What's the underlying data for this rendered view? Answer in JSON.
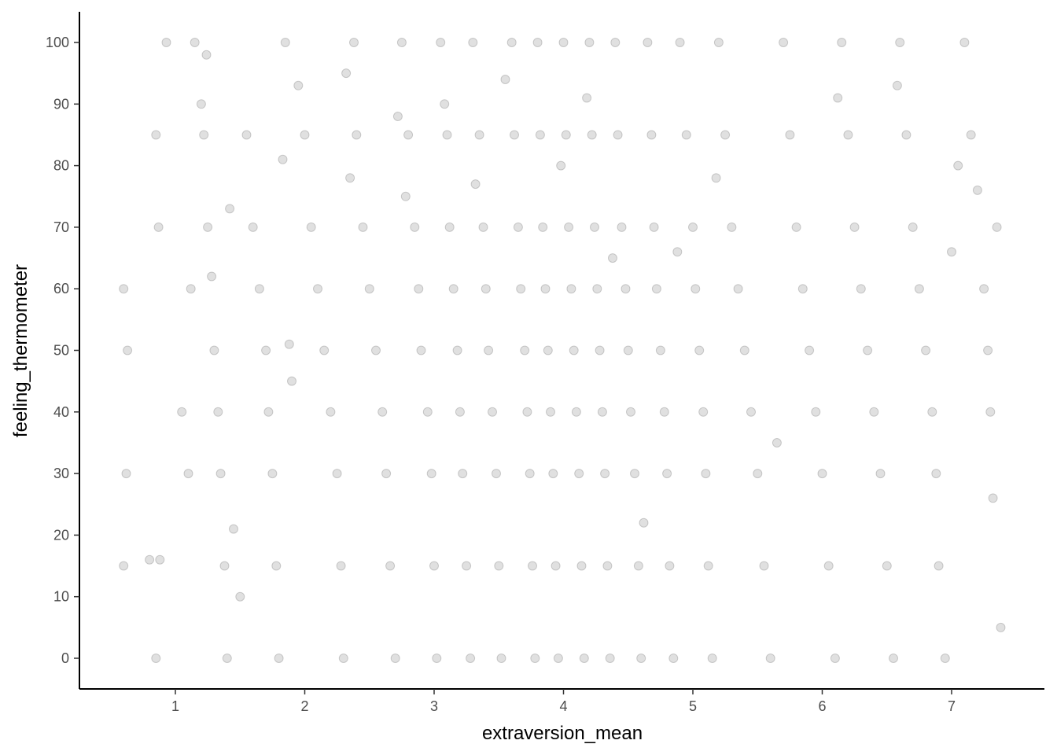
{
  "chart_data": {
    "type": "scatter",
    "title": "",
    "xlabel": "extraversion_mean",
    "ylabel": "feeling_thermometer",
    "xlim": [
      0.5,
      7.5
    ],
    "ylim": [
      -5,
      105
    ],
    "x_ticks": [
      1,
      2,
      3,
      4,
      5,
      6,
      7
    ],
    "y_ticks": [
      0,
      10,
      20,
      30,
      40,
      50,
      60,
      70,
      80,
      90,
      100
    ],
    "x_tick_labels": [
      "1",
      "2",
      "3",
      "4",
      "5",
      "6",
      "7"
    ],
    "y_tick_labels": [
      "0",
      "10",
      "20",
      "30",
      "40",
      "50",
      "60",
      "70",
      "80",
      "90",
      "100"
    ],
    "grid": false,
    "legend": "none",
    "point_color": "#000000",
    "point_alpha": 0.12,
    "series": [
      {
        "points": [
          [
            0.93,
            100
          ],
          [
            0.85,
            85
          ],
          [
            0.87,
            70
          ],
          [
            0.6,
            60
          ],
          [
            0.63,
            50
          ],
          [
            0.62,
            30
          ],
          [
            0.6,
            15
          ],
          [
            0.85,
            0
          ],
          [
            0.8,
            16
          ],
          [
            0.88,
            16
          ],
          [
            1.05,
            40
          ],
          [
            1.1,
            30
          ],
          [
            1.12,
            60
          ],
          [
            1.15,
            100
          ],
          [
            1.2,
            90
          ],
          [
            1.22,
            85
          ],
          [
            1.24,
            98
          ],
          [
            1.25,
            70
          ],
          [
            1.28,
            62
          ],
          [
            1.3,
            50
          ],
          [
            1.33,
            40
          ],
          [
            1.35,
            30
          ],
          [
            1.38,
            15
          ],
          [
            1.4,
            0
          ],
          [
            1.42,
            73
          ],
          [
            1.45,
            21
          ],
          [
            1.5,
            10
          ],
          [
            1.55,
            85
          ],
          [
            1.6,
            70
          ],
          [
            1.65,
            60
          ],
          [
            1.7,
            50
          ],
          [
            1.72,
            40
          ],
          [
            1.75,
            30
          ],
          [
            1.78,
            15
          ],
          [
            1.8,
            0
          ],
          [
            1.83,
            81
          ],
          [
            1.85,
            100
          ],
          [
            1.88,
            51
          ],
          [
            1.9,
            45
          ],
          [
            1.95,
            93
          ],
          [
            2.0,
            85
          ],
          [
            2.05,
            70
          ],
          [
            2.1,
            60
          ],
          [
            2.15,
            50
          ],
          [
            2.2,
            40
          ],
          [
            2.25,
            30
          ],
          [
            2.28,
            15
          ],
          [
            2.3,
            0
          ],
          [
            2.32,
            95
          ],
          [
            2.35,
            78
          ],
          [
            2.38,
            100
          ],
          [
            2.4,
            85
          ],
          [
            2.45,
            70
          ],
          [
            2.5,
            60
          ],
          [
            2.55,
            50
          ],
          [
            2.6,
            40
          ],
          [
            2.63,
            30
          ],
          [
            2.66,
            15
          ],
          [
            2.7,
            0
          ],
          [
            2.72,
            88
          ],
          [
            2.75,
            100
          ],
          [
            2.78,
            75
          ],
          [
            2.8,
            85
          ],
          [
            2.85,
            70
          ],
          [
            2.88,
            60
          ],
          [
            2.9,
            50
          ],
          [
            2.95,
            40
          ],
          [
            2.98,
            30
          ],
          [
            3.0,
            15
          ],
          [
            3.02,
            0
          ],
          [
            3.05,
            100
          ],
          [
            3.08,
            90
          ],
          [
            3.1,
            85
          ],
          [
            3.12,
            70
          ],
          [
            3.15,
            60
          ],
          [
            3.18,
            50
          ],
          [
            3.2,
            40
          ],
          [
            3.22,
            30
          ],
          [
            3.25,
            15
          ],
          [
            3.28,
            0
          ],
          [
            3.3,
            100
          ],
          [
            3.32,
            77
          ],
          [
            3.35,
            85
          ],
          [
            3.38,
            70
          ],
          [
            3.4,
            60
          ],
          [
            3.42,
            50
          ],
          [
            3.45,
            40
          ],
          [
            3.48,
            30
          ],
          [
            3.5,
            15
          ],
          [
            3.52,
            0
          ],
          [
            3.55,
            94
          ],
          [
            3.6,
            100
          ],
          [
            3.62,
            85
          ],
          [
            3.65,
            70
          ],
          [
            3.67,
            60
          ],
          [
            3.7,
            50
          ],
          [
            3.72,
            40
          ],
          [
            3.74,
            30
          ],
          [
            3.76,
            15
          ],
          [
            3.78,
            0
          ],
          [
            3.8,
            100
          ],
          [
            3.82,
            85
          ],
          [
            3.84,
            70
          ],
          [
            3.86,
            60
          ],
          [
            3.88,
            50
          ],
          [
            3.9,
            40
          ],
          [
            3.92,
            30
          ],
          [
            3.94,
            15
          ],
          [
            3.96,
            0
          ],
          [
            3.98,
            80
          ],
          [
            4.0,
            100
          ],
          [
            4.02,
            85
          ],
          [
            4.04,
            70
          ],
          [
            4.06,
            60
          ],
          [
            4.08,
            50
          ],
          [
            4.1,
            40
          ],
          [
            4.12,
            30
          ],
          [
            4.14,
            15
          ],
          [
            4.16,
            0
          ],
          [
            4.18,
            91
          ],
          [
            4.2,
            100
          ],
          [
            4.22,
            85
          ],
          [
            4.24,
            70
          ],
          [
            4.26,
            60
          ],
          [
            4.28,
            50
          ],
          [
            4.3,
            40
          ],
          [
            4.32,
            30
          ],
          [
            4.34,
            15
          ],
          [
            4.36,
            0
          ],
          [
            4.38,
            65
          ],
          [
            4.4,
            100
          ],
          [
            4.42,
            85
          ],
          [
            4.45,
            70
          ],
          [
            4.48,
            60
          ],
          [
            4.5,
            50
          ],
          [
            4.52,
            40
          ],
          [
            4.55,
            30
          ],
          [
            4.58,
            15
          ],
          [
            4.6,
            0
          ],
          [
            4.62,
            22
          ],
          [
            4.65,
            100
          ],
          [
            4.68,
            85
          ],
          [
            4.7,
            70
          ],
          [
            4.72,
            60
          ],
          [
            4.75,
            50
          ],
          [
            4.78,
            40
          ],
          [
            4.8,
            30
          ],
          [
            4.82,
            15
          ],
          [
            4.85,
            0
          ],
          [
            4.88,
            66
          ],
          [
            4.9,
            100
          ],
          [
            4.95,
            85
          ],
          [
            5.0,
            70
          ],
          [
            5.02,
            60
          ],
          [
            5.05,
            50
          ],
          [
            5.08,
            40
          ],
          [
            5.1,
            30
          ],
          [
            5.12,
            15
          ],
          [
            5.15,
            0
          ],
          [
            5.18,
            78
          ],
          [
            5.2,
            100
          ],
          [
            5.25,
            85
          ],
          [
            5.3,
            70
          ],
          [
            5.35,
            60
          ],
          [
            5.4,
            50
          ],
          [
            5.45,
            40
          ],
          [
            5.5,
            30
          ],
          [
            5.55,
            15
          ],
          [
            5.6,
            0
          ],
          [
            5.65,
            35
          ],
          [
            5.7,
            100
          ],
          [
            5.75,
            85
          ],
          [
            5.8,
            70
          ],
          [
            5.85,
            60
          ],
          [
            5.9,
            50
          ],
          [
            5.95,
            40
          ],
          [
            6.0,
            30
          ],
          [
            6.05,
            15
          ],
          [
            6.1,
            0
          ],
          [
            6.12,
            91
          ],
          [
            6.15,
            100
          ],
          [
            6.2,
            85
          ],
          [
            6.25,
            70
          ],
          [
            6.3,
            60
          ],
          [
            6.35,
            50
          ],
          [
            6.4,
            40
          ],
          [
            6.45,
            30
          ],
          [
            6.5,
            15
          ],
          [
            6.55,
            0
          ],
          [
            6.58,
            93
          ],
          [
            6.6,
            100
          ],
          [
            6.65,
            85
          ],
          [
            6.7,
            70
          ],
          [
            6.75,
            60
          ],
          [
            6.8,
            50
          ],
          [
            6.85,
            40
          ],
          [
            6.88,
            30
          ],
          [
            6.9,
            15
          ],
          [
            6.95,
            0
          ],
          [
            7.0,
            66
          ],
          [
            7.05,
            80
          ],
          [
            7.1,
            100
          ],
          [
            7.15,
            85
          ],
          [
            7.2,
            76
          ],
          [
            7.25,
            60
          ],
          [
            7.28,
            50
          ],
          [
            7.3,
            40
          ],
          [
            7.32,
            26
          ],
          [
            7.35,
            70
          ],
          [
            7.38,
            5
          ]
        ]
      }
    ]
  }
}
